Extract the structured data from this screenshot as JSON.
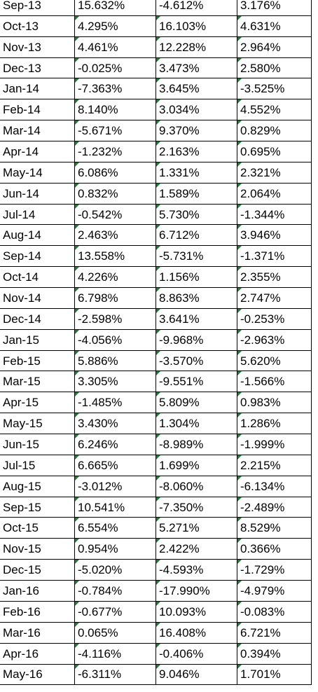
{
  "rows": [
    {
      "month": "Sep-13",
      "a": "15.632%",
      "b": "-4.612%",
      "c": "3.176%"
    },
    {
      "month": "Oct-13",
      "a": "4.295%",
      "b": "16.103%",
      "c": "4.631%"
    },
    {
      "month": "Nov-13",
      "a": "4.461%",
      "b": "12.228%",
      "c": "2.964%"
    },
    {
      "month": "Dec-13",
      "a": "-0.025%",
      "b": "3.473%",
      "c": "2.580%"
    },
    {
      "month": "Jan-14",
      "a": "-7.363%",
      "b": "3.645%",
      "c": "-3.525%"
    },
    {
      "month": "Feb-14",
      "a": "8.140%",
      "b": "3.034%",
      "c": "4.552%"
    },
    {
      "month": "Mar-14",
      "a": "-5.671%",
      "b": "9.370%",
      "c": "0.829%"
    },
    {
      "month": "Apr-14",
      "a": "-1.232%",
      "b": "2.163%",
      "c": "0.695%"
    },
    {
      "month": "May-14",
      "a": "6.086%",
      "b": "1.331%",
      "c": "2.321%"
    },
    {
      "month": "Jun-14",
      "a": "0.832%",
      "b": "1.589%",
      "c": "2.064%"
    },
    {
      "month": "Jul-14",
      "a": "-0.542%",
      "b": "5.730%",
      "c": "-1.344%"
    },
    {
      "month": "Aug-14",
      "a": "2.463%",
      "b": "6.712%",
      "c": "3.946%"
    },
    {
      "month": "Sep-14",
      "a": "13.558%",
      "b": "-5.731%",
      "c": "-1.371%"
    },
    {
      "month": "Oct-14",
      "a": "4.226%",
      "b": "1.156%",
      "c": "2.355%"
    },
    {
      "month": "Nov-14",
      "a": "6.798%",
      "b": "8.863%",
      "c": "2.747%"
    },
    {
      "month": "Dec-14",
      "a": "-2.598%",
      "b": "3.641%",
      "c": "-0.253%"
    },
    {
      "month": "Jan-15",
      "a": "-4.056%",
      "b": "-9.968%",
      "c": "-2.963%"
    },
    {
      "month": "Feb-15",
      "a": "5.886%",
      "b": "-3.570%",
      "c": "5.620%"
    },
    {
      "month": "Mar-15",
      "a": "3.305%",
      "b": "-9.551%",
      "c": "-1.566%"
    },
    {
      "month": "Apr-15",
      "a": "-1.485%",
      "b": "5.809%",
      "c": "0.983%"
    },
    {
      "month": "May-15",
      "a": "3.430%",
      "b": "1.304%",
      "c": "1.286%"
    },
    {
      "month": "Jun-15",
      "a": "6.246%",
      "b": "-8.989%",
      "c": "-1.999%"
    },
    {
      "month": "Jul-15",
      "a": "6.665%",
      "b": "1.699%",
      "c": "2.215%"
    },
    {
      "month": "Aug-15",
      "a": "-3.012%",
      "b": "-8.060%",
      "c": "-6.134%"
    },
    {
      "month": "Sep-15",
      "a": "10.541%",
      "b": "-7.350%",
      "c": "-2.489%"
    },
    {
      "month": "Oct-15",
      "a": "6.554%",
      "b": "5.271%",
      "c": "8.529%"
    },
    {
      "month": "Nov-15",
      "a": "0.954%",
      "b": "2.422%",
      "c": "0.366%"
    },
    {
      "month": "Dec-15",
      "a": "-5.020%",
      "b": "-4.593%",
      "c": "-1.729%"
    },
    {
      "month": "Jan-16",
      "a": "-0.784%",
      "b": "-17.990%",
      "c": "-4.979%"
    },
    {
      "month": "Feb-16",
      "a": "-0.677%",
      "b": "10.093%",
      "c": "-0.083%"
    },
    {
      "month": "Mar-16",
      "a": "0.065%",
      "b": "16.408%",
      "c": "6.721%"
    },
    {
      "month": "Apr-16",
      "a": "-4.116%",
      "b": "-0.406%",
      "c": "0.394%"
    },
    {
      "month": "May-16",
      "a": "-6.311%",
      "b": "9.046%",
      "c": "1.701%"
    }
  ],
  "colors": {
    "error_indicator": "#1e7b34",
    "grid": "#000000"
  }
}
